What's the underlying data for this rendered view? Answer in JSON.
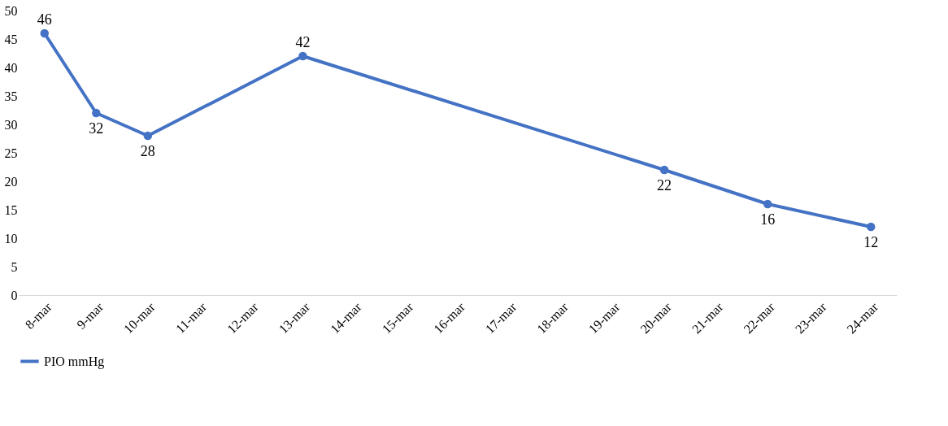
{
  "chart_data": {
    "type": "line",
    "categories": [
      "8-mar",
      "9-mar",
      "10-mar",
      "11-mar",
      "12-mar",
      "13-mar",
      "14-mar",
      "15-mar",
      "16-mar",
      "17-mar",
      "18-mar",
      "19-mar",
      "20-mar",
      "21-mar",
      "22-mar",
      "23-mar",
      "24-mar"
    ],
    "series": [
      {
        "name": "PIO mmHg",
        "color": "#4472c4",
        "values": [
          46,
          32,
          28,
          null,
          null,
          42,
          null,
          null,
          null,
          null,
          null,
          null,
          22,
          null,
          16,
          null,
          12
        ]
      }
    ],
    "ylim": [
      0,
      50
    ],
    "yticks": [
      0,
      5,
      10,
      15,
      20,
      25,
      30,
      35,
      40,
      45,
      50
    ],
    "grid": false,
    "legend": "bottom",
    "marker": "circle",
    "line_style": "solid",
    "data_labels": true
  }
}
